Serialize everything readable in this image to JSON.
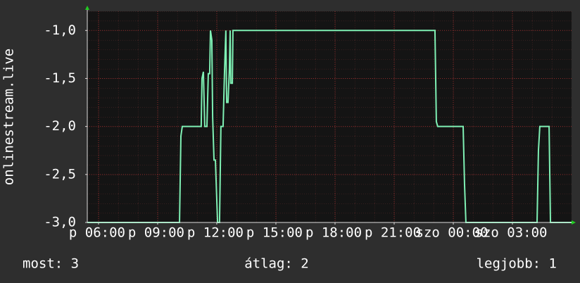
{
  "chart_data": {
    "type": "line",
    "y_label": "onlinestream.live",
    "x": [
      5.43,
      10.11,
      10.18,
      10.25,
      11.21,
      11.25,
      11.32,
      11.39,
      11.5,
      11.57,
      11.64,
      11.68,
      11.75,
      11.79,
      11.86,
      11.93,
      12.04,
      12.14,
      12.21,
      12.32,
      12.39,
      12.46,
      12.5,
      12.57,
      12.64,
      12.68,
      12.71,
      12.79,
      12.82,
      23.07,
      23.14,
      23.21,
      24.5,
      24.57,
      24.64,
      28.25,
      28.32,
      28.39,
      28.86,
      28.93,
      30.0
    ],
    "series": [
      {
        "color": "#7ff0b4",
        "values": [
          -3.0,
          -3.0,
          -2.1,
          -2.0,
          -2.0,
          -1.5,
          -1.43,
          -2.0,
          -2.0,
          -1.45,
          -1.45,
          -1.0,
          -1.1,
          -1.9,
          -2.35,
          -2.35,
          -3.0,
          -3.0,
          -2.0,
          -2.0,
          -1.45,
          -1.0,
          -1.75,
          -1.75,
          -1.4,
          -1.0,
          -1.55,
          -1.55,
          -1.0,
          -1.0,
          -1.95,
          -2.0,
          -2.0,
          -2.6,
          -3.0,
          -3.0,
          -2.25,
          -2.0,
          -2.0,
          -3.0,
          -3.0
        ]
      }
    ],
    "xlim": [
      5.43,
      30.0
    ],
    "xticks": [
      {
        "value": 6,
        "label": "p 06:00"
      },
      {
        "value": 9,
        "label": "p 09:00"
      },
      {
        "value": 12,
        "label": "p 12:00"
      },
      {
        "value": 15,
        "label": "p 15:00"
      },
      {
        "value": 18,
        "label": "p 18:00"
      },
      {
        "value": 21,
        "label": "p 21:00"
      },
      {
        "value": 24,
        "label": "szo 00:00"
      },
      {
        "value": 27,
        "label": "szo 03:00"
      }
    ],
    "ylim": [
      -3.0,
      -0.8
    ],
    "yticks": [
      {
        "value": -3.0,
        "label": "-3,0"
      },
      {
        "value": -2.5,
        "label": "-2,5"
      },
      {
        "value": -2.0,
        "label": "-2,0"
      },
      {
        "value": -1.5,
        "label": "-1,5"
      },
      {
        "value": -1.0,
        "label": "-1,0"
      }
    ],
    "grid": true,
    "stats": [
      "most: 3",
      "átlag: 2",
      "legjobb: 1"
    ]
  }
}
